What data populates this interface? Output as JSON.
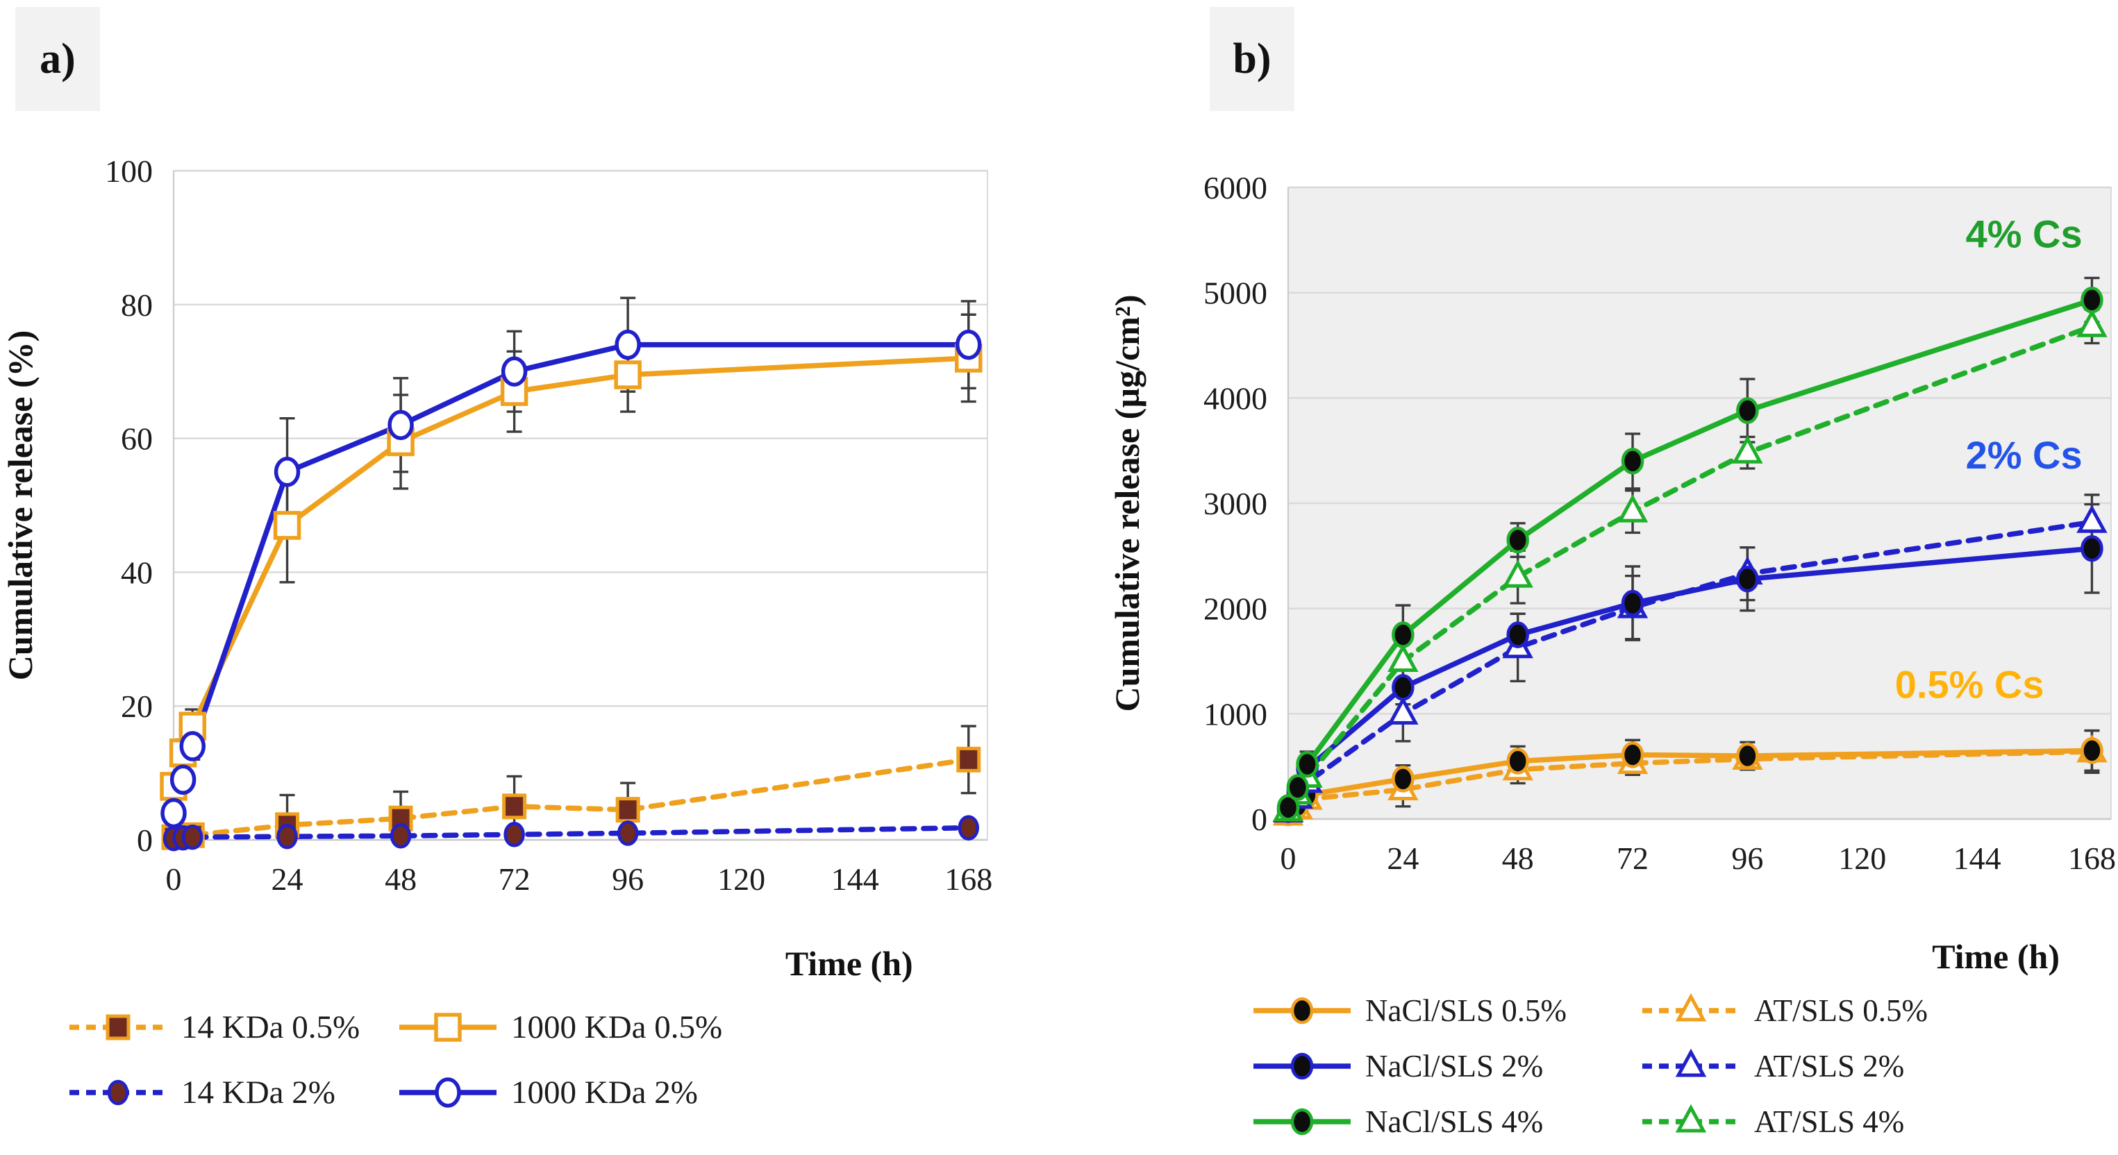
{
  "chart_data": [
    {
      "type": "line",
      "panel_label": "a)",
      "title": "",
      "xlabel": "Time (h)",
      "ylabel": "Cumulative release (%)",
      "xlim": [
        0,
        172
      ],
      "ylim": [
        0,
        100
      ],
      "x_ticks": [
        0,
        24,
        48,
        72,
        96,
        120,
        144,
        168
      ],
      "y_ticks": [
        0,
        20,
        40,
        60,
        80,
        100
      ],
      "grid": "horizontal",
      "legend_position": "bottom",
      "plot_background": "#FFFFFF",
      "x": [
        0,
        2,
        4,
        24,
        48,
        72,
        96,
        168
      ],
      "series": [
        {
          "name": "14 KDa 0.5%",
          "color": "#EFA11E",
          "line": "dashed",
          "marker": "square",
          "marker_fill": "#6F2B20",
          "values": [
            0.4,
            0.5,
            0.7,
            2.2,
            3.2,
            5,
            4.5,
            12
          ],
          "errors": [
            0.3,
            0.3,
            0.4,
            4.5,
            4,
            4.5,
            4,
            5
          ]
        },
        {
          "name": "1000 KDa 0.5%",
          "color": "#EFA11E",
          "line": "solid",
          "marker": "square",
          "marker_fill": "#FFFFFF",
          "values": [
            8,
            13,
            17,
            47,
            59.5,
            67,
            69.5,
            72
          ],
          "errors": [
            1.5,
            2,
            2.5,
            8.5,
            7,
            6,
            5.5,
            6.5
          ]
        },
        {
          "name": "14 KDa 2%",
          "color": "#2121CB",
          "line": "dashed",
          "marker": "circle",
          "marker_fill": "#6F2B20",
          "values": [
            0.2,
            0.3,
            0.4,
            0.5,
            0.6,
            0.8,
            1,
            1.8
          ],
          "errors": [
            0.2,
            0.2,
            0.3,
            0.4,
            1.2,
            0.5,
            0.8,
            1.2
          ]
        },
        {
          "name": "1000 KDa 2%",
          "color": "#2121CB",
          "line": "solid",
          "marker": "circle",
          "marker_fill": "#FFFFFF",
          "values": [
            4,
            9,
            14,
            55,
            62,
            70,
            74,
            74
          ],
          "errors": [
            1,
            1.5,
            2,
            8,
            7,
            6,
            7,
            6.5
          ]
        }
      ],
      "legend_rows": [
        [
          0,
          1
        ],
        [
          2,
          3
        ]
      ],
      "annotations": []
    },
    {
      "type": "line",
      "panel_label": "b)",
      "title": "",
      "xlabel": "Time (h)",
      "ylabel": "Cumulative release (µg/cm²)",
      "xlim": [
        0,
        172
      ],
      "ylim": [
        0,
        6000
      ],
      "x_ticks": [
        0,
        24,
        48,
        72,
        96,
        120,
        144,
        168
      ],
      "y_ticks": [
        0,
        1000,
        2000,
        3000,
        4000,
        5000,
        6000
      ],
      "grid": "horizontal",
      "legend_position": "bottom",
      "plot_background": "#EFEFEF",
      "x": [
        0,
        2,
        4,
        24,
        48,
        72,
        96,
        168
      ],
      "series": [
        {
          "name": "NaCl/SLS 0.5%",
          "color": "#F0A01E",
          "line": "solid",
          "marker": "circle",
          "marker_fill": "#0D0D0D",
          "values": [
            60,
            130,
            230,
            380,
            550,
            610,
            600,
            650
          ],
          "errors": [
            25,
            40,
            60,
            130,
            140,
            140,
            130,
            190
          ]
        },
        {
          "name": "AT/SLS 0.5%",
          "color": "#F0A01E",
          "line": "dashed",
          "marker": "triangle",
          "marker_fill": "#FFFFFF",
          "values": [
            40,
            100,
            190,
            280,
            470,
            530,
            570,
            640
          ],
          "errors": [
            20,
            35,
            55,
            160,
            130,
            110,
            100,
            200
          ]
        },
        {
          "name": "NaCl/SLS 2%",
          "color": "#2121CB",
          "line": "solid",
          "marker": "circle",
          "marker_fill": "#0D0D0D",
          "values": [
            90,
            260,
            480,
            1250,
            1750,
            2050,
            2280,
            2570
          ],
          "errors": [
            30,
            60,
            110,
            160,
            200,
            350,
            300,
            420
          ]
        },
        {
          "name": "AT/SLS 2%",
          "color": "#2121CB",
          "line": "dashed",
          "marker": "triangle",
          "marker_fill": "#FFFFFF",
          "values": [
            70,
            200,
            350,
            1000,
            1630,
            2010,
            2330,
            2820
          ],
          "errors": [
            30,
            60,
            100,
            260,
            320,
            300,
            250,
            260
          ]
        },
        {
          "name": "NaCl/SLS 4%",
          "color": "#1FAF2A",
          "line": "solid",
          "marker": "circle",
          "marker_fill": "#0D0D0D",
          "values": [
            110,
            300,
            520,
            1750,
            2650,
            3400,
            3880,
            4930
          ],
          "errors": [
            40,
            80,
            120,
            280,
            160,
            260,
            300,
            210
          ]
        },
        {
          "name": "AT/SLS 4%",
          "color": "#1FAF2A",
          "line": "dashed",
          "marker": "triangle",
          "marker_fill": "#FFFFFF",
          "values": [
            80,
            240,
            400,
            1500,
            2300,
            2920,
            3480,
            4680
          ],
          "errors": [
            35,
            70,
            100,
            200,
            250,
            200,
            150,
            160
          ]
        }
      ],
      "legend_rows": [
        [
          0,
          1
        ],
        [
          2,
          3
        ],
        [
          4,
          5
        ]
      ],
      "annotations": [
        {
          "text": "4% Cs",
          "color": "#1F9E2C",
          "x": 166,
          "y": 5550
        },
        {
          "text": "2% Cs",
          "color": "#2353E8",
          "x": 166,
          "y": 3450
        },
        {
          "text": "0.5% Cs",
          "color": "#FFB30A",
          "x": 158,
          "y": 1270
        }
      ]
    }
  ],
  "styles": {
    "error_bar_color": "#3C3C3C",
    "grid_color": "#D9D9D9",
    "axis_color": "#B5B5B5",
    "tick_label_color": "#1C1C1C"
  }
}
